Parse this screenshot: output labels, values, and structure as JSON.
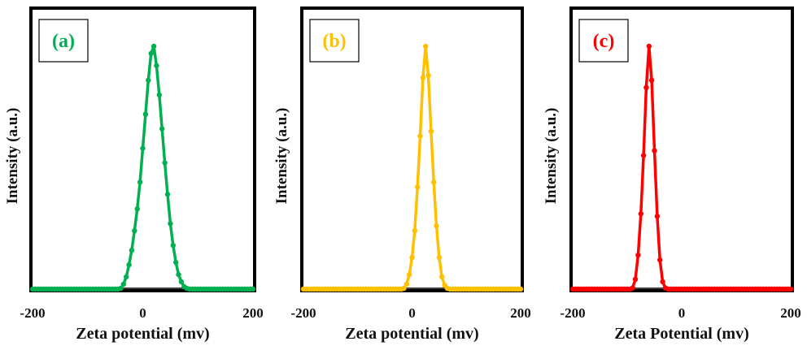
{
  "chart_data": [
    {
      "type": "line",
      "panel_label": "(a)",
      "color": "#00B050",
      "xlabel": "Zeta potential (mv)",
      "ylabel": "Intensity (a.u.)",
      "xlim": [
        -200,
        200
      ],
      "ylim": [
        0,
        1.05
      ],
      "x_ticks": [
        "-200",
        "0",
        "200"
      ],
      "grid": false,
      "series": [
        {
          "x": [
            -200,
            -195,
            -190,
            -185,
            -180,
            -175,
            -170,
            -165,
            -160,
            -155,
            -150,
            -145,
            -140,
            -135,
            -130,
            -125,
            -120,
            -115,
            -110,
            -105,
            -100,
            -95,
            -90,
            -85,
            -80,
            -75,
            -70,
            -65,
            -60,
            -55,
            -50,
            -45,
            -40,
            -35,
            -30,
            -25,
            -20,
            -15,
            -10,
            -5,
            0,
            5,
            10,
            15,
            20,
            25,
            30,
            35,
            40,
            45,
            50,
            55,
            60,
            65,
            70,
            75,
            80,
            85,
            90,
            95,
            100,
            105,
            110,
            115,
            120,
            125,
            130,
            135,
            140,
            145,
            150,
            155,
            160,
            165,
            170,
            175,
            180,
            185,
            190,
            195,
            200
          ],
          "y": [
            0,
            0,
            0,
            0,
            0,
            0,
            0,
            0,
            0,
            0,
            0,
            0,
            0,
            0,
            0,
            0,
            0,
            0,
            0,
            0,
            0,
            0,
            0,
            0,
            0,
            0,
            0,
            0,
            0,
            0,
            0,
            0,
            0.003,
            0.02,
            0.05,
            0.1,
            0.16,
            0.24,
            0.33,
            0.44,
            0.58,
            0.72,
            0.86,
            0.97,
            1.0,
            0.92,
            0.8,
            0.66,
            0.52,
            0.39,
            0.27,
            0.18,
            0.11,
            0.06,
            0.03,
            0.01,
            0.003,
            0,
            0,
            0,
            0,
            0,
            0,
            0,
            0,
            0,
            0,
            0,
            0,
            0,
            0,
            0,
            0,
            0,
            0,
            0,
            0,
            0,
            0,
            0,
            0
          ]
        }
      ]
    },
    {
      "type": "line",
      "panel_label": "(b)",
      "color": "#FFC000",
      "xlabel": "Zeta potential (mv)",
      "ylabel": "Intensity (a.u.)",
      "xlim": [
        -200,
        200
      ],
      "ylim": [
        0,
        1.05
      ],
      "x_ticks": [
        "-200",
        "0",
        "200"
      ],
      "grid": false,
      "series": [
        {
          "x": [
            -200,
            -195,
            -190,
            -185,
            -180,
            -175,
            -170,
            -165,
            -160,
            -155,
            -150,
            -145,
            -140,
            -135,
            -130,
            -125,
            -120,
            -115,
            -110,
            -105,
            -100,
            -95,
            -90,
            -85,
            -80,
            -75,
            -70,
            -65,
            -60,
            -55,
            -50,
            -45,
            -40,
            -35,
            -30,
            -25,
            -20,
            -15,
            -10,
            -5,
            0,
            5,
            10,
            15,
            20,
            25,
            30,
            35,
            40,
            45,
            50,
            55,
            60,
            65,
            70,
            75,
            80,
            85,
            90,
            95,
            100,
            105,
            110,
            115,
            120,
            125,
            130,
            135,
            140,
            145,
            150,
            155,
            160,
            165,
            170,
            175,
            180,
            185,
            190,
            195,
            200
          ],
          "y": [
            0,
            0,
            0,
            0,
            0,
            0,
            0,
            0,
            0,
            0,
            0,
            0,
            0,
            0,
            0,
            0,
            0,
            0,
            0,
            0,
            0,
            0,
            0,
            0,
            0,
            0,
            0,
            0,
            0,
            0,
            0,
            0,
            0,
            0,
            0,
            0,
            0,
            0.003,
            0.02,
            0.06,
            0.13,
            0.24,
            0.42,
            0.63,
            0.87,
            1.0,
            0.88,
            0.65,
            0.44,
            0.26,
            0.13,
            0.05,
            0.015,
            0.003,
            0,
            0,
            0,
            0,
            0,
            0,
            0,
            0,
            0,
            0,
            0,
            0,
            0,
            0,
            0,
            0,
            0,
            0,
            0,
            0,
            0,
            0,
            0,
            0,
            0,
            0,
            0
          ]
        }
      ]
    },
    {
      "type": "line",
      "panel_label": "(c)",
      "color": "#FF0000",
      "xlabel": "Zeta Potential (mv)",
      "ylabel": "Intensity (a.u.)",
      "xlim": [
        -200,
        200
      ],
      "ylim": [
        0,
        1.05
      ],
      "x_ticks": [
        "-200",
        "0",
        "200"
      ],
      "grid": false,
      "series": [
        {
          "x": [
            -200,
            -195,
            -190,
            -185,
            -180,
            -175,
            -170,
            -165,
            -160,
            -155,
            -150,
            -145,
            -140,
            -135,
            -130,
            -125,
            -120,
            -115,
            -110,
            -105,
            -100,
            -95,
            -90,
            -85,
            -80,
            -75,
            -70,
            -65,
            -60,
            -55,
            -50,
            -45,
            -40,
            -35,
            -30,
            -25,
            -20,
            -15,
            -10,
            -5,
            0,
            5,
            10,
            15,
            20,
            25,
            30,
            35,
            40,
            45,
            50,
            55,
            60,
            65,
            70,
            75,
            80,
            85,
            90,
            95,
            100,
            105,
            110,
            115,
            120,
            125,
            130,
            135,
            140,
            145,
            150,
            155,
            160,
            165,
            170,
            175,
            180,
            185,
            190,
            195,
            200
          ],
          "y": [
            0,
            0,
            0,
            0,
            0,
            0,
            0,
            0,
            0,
            0,
            0,
            0,
            0,
            0,
            0,
            0,
            0,
            0,
            0,
            0,
            0,
            0,
            0.005,
            0.04,
            0.14,
            0.31,
            0.55,
            0.83,
            1.0,
            0.86,
            0.57,
            0.3,
            0.12,
            0.03,
            0.005,
            0,
            0,
            0,
            0,
            0,
            0,
            0,
            0,
            0,
            0,
            0,
            0,
            0,
            0,
            0,
            0,
            0,
            0,
            0,
            0,
            0,
            0,
            0,
            0,
            0,
            0,
            0,
            0,
            0,
            0,
            0,
            0,
            0,
            0,
            0,
            0,
            0,
            0,
            0,
            0,
            0,
            0,
            0,
            0,
            0,
            0
          ]
        }
      ]
    }
  ]
}
